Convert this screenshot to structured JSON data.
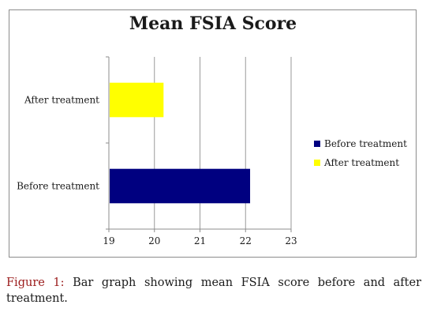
{
  "chart_data": {
    "type": "bar",
    "orientation": "horizontal",
    "title": "Mean FSIA Score",
    "categories": [
      "Before treatment",
      "After treatment"
    ],
    "series": [
      {
        "name": "Before treatment",
        "category": "Before treatment",
        "value": 22.1,
        "color": "#000080"
      },
      {
        "name": "After treatment",
        "category": "After treatment",
        "value": 20.2,
        "color": "#ffff00"
      }
    ],
    "xlim": [
      19,
      23
    ],
    "xticks": [
      "19",
      "20",
      "21",
      "22",
      "23"
    ],
    "xlabel": "",
    "ylabel": "",
    "grid": "vertical",
    "legend": {
      "placement": "right",
      "items": [
        "Before treatment",
        "After treatment"
      ]
    }
  },
  "caption": {
    "label": "Figure 1:",
    "text": "Bar graph showing mean FSIA score before and after treatment."
  }
}
